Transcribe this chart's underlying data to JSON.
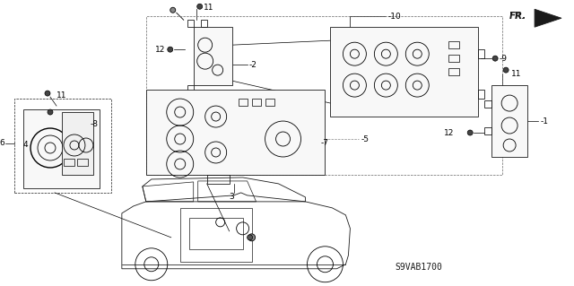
{
  "diagram_code": "S9VAB1700",
  "bg": "#ffffff",
  "lc": "#1a1a1a",
  "fig_w": 6.4,
  "fig_h": 3.19,
  "dpi": 100
}
